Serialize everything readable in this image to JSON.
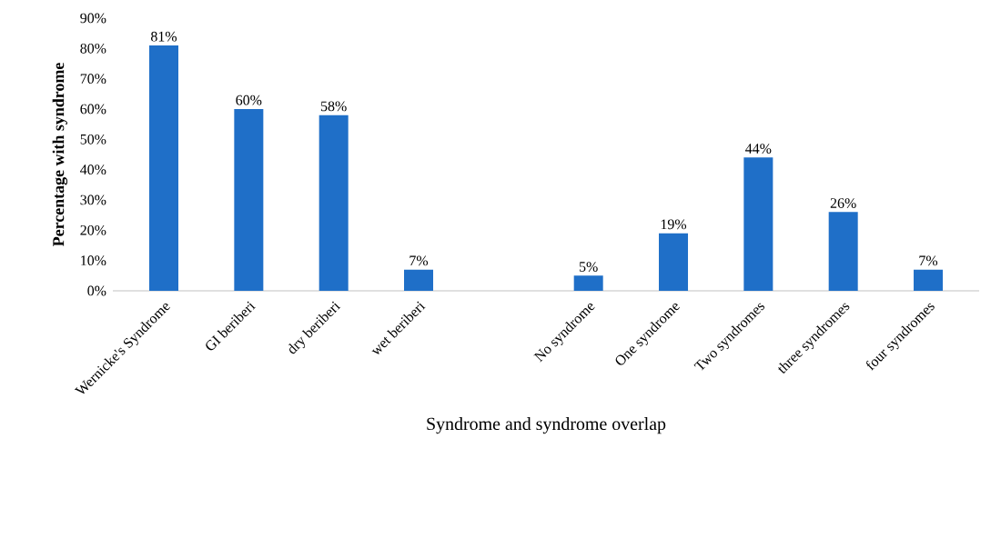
{
  "chart_data": {
    "type": "bar",
    "xlabel": "Syndrome and syndrome overlap",
    "ylabel": "Percentage with syndrome",
    "categories": [
      "Wernicke's Syndrome",
      "GI beriberi",
      "dry beriberi",
      "wet beriberi",
      null,
      "No syndrome",
      "One syndrome",
      "Two syndromes",
      "three syndromes",
      "four syndromes"
    ],
    "values": [
      81,
      60,
      58,
      7,
      null,
      5,
      19,
      44,
      26,
      7
    ],
    "value_labels": [
      "81%",
      "60%",
      "58%",
      "7%",
      null,
      "5%",
      "19%",
      "44%",
      "26%",
      "7%"
    ],
    "color": "#1f6fc8",
    "ylim": [
      0,
      90
    ],
    "yticks": [
      {
        "value": 0,
        "label": "0%"
      },
      {
        "value": 10,
        "label": "10%"
      },
      {
        "value": 20,
        "label": "20%"
      },
      {
        "value": 30,
        "label": "30%"
      },
      {
        "value": 40,
        "label": "40%"
      },
      {
        "value": 50,
        "label": "50%"
      },
      {
        "value": 60,
        "label": "60%"
      },
      {
        "value": 70,
        "label": "70%"
      },
      {
        "value": 80,
        "label": "80%"
      },
      {
        "value": 90,
        "label": "90%"
      }
    ],
    "grid": false
  }
}
